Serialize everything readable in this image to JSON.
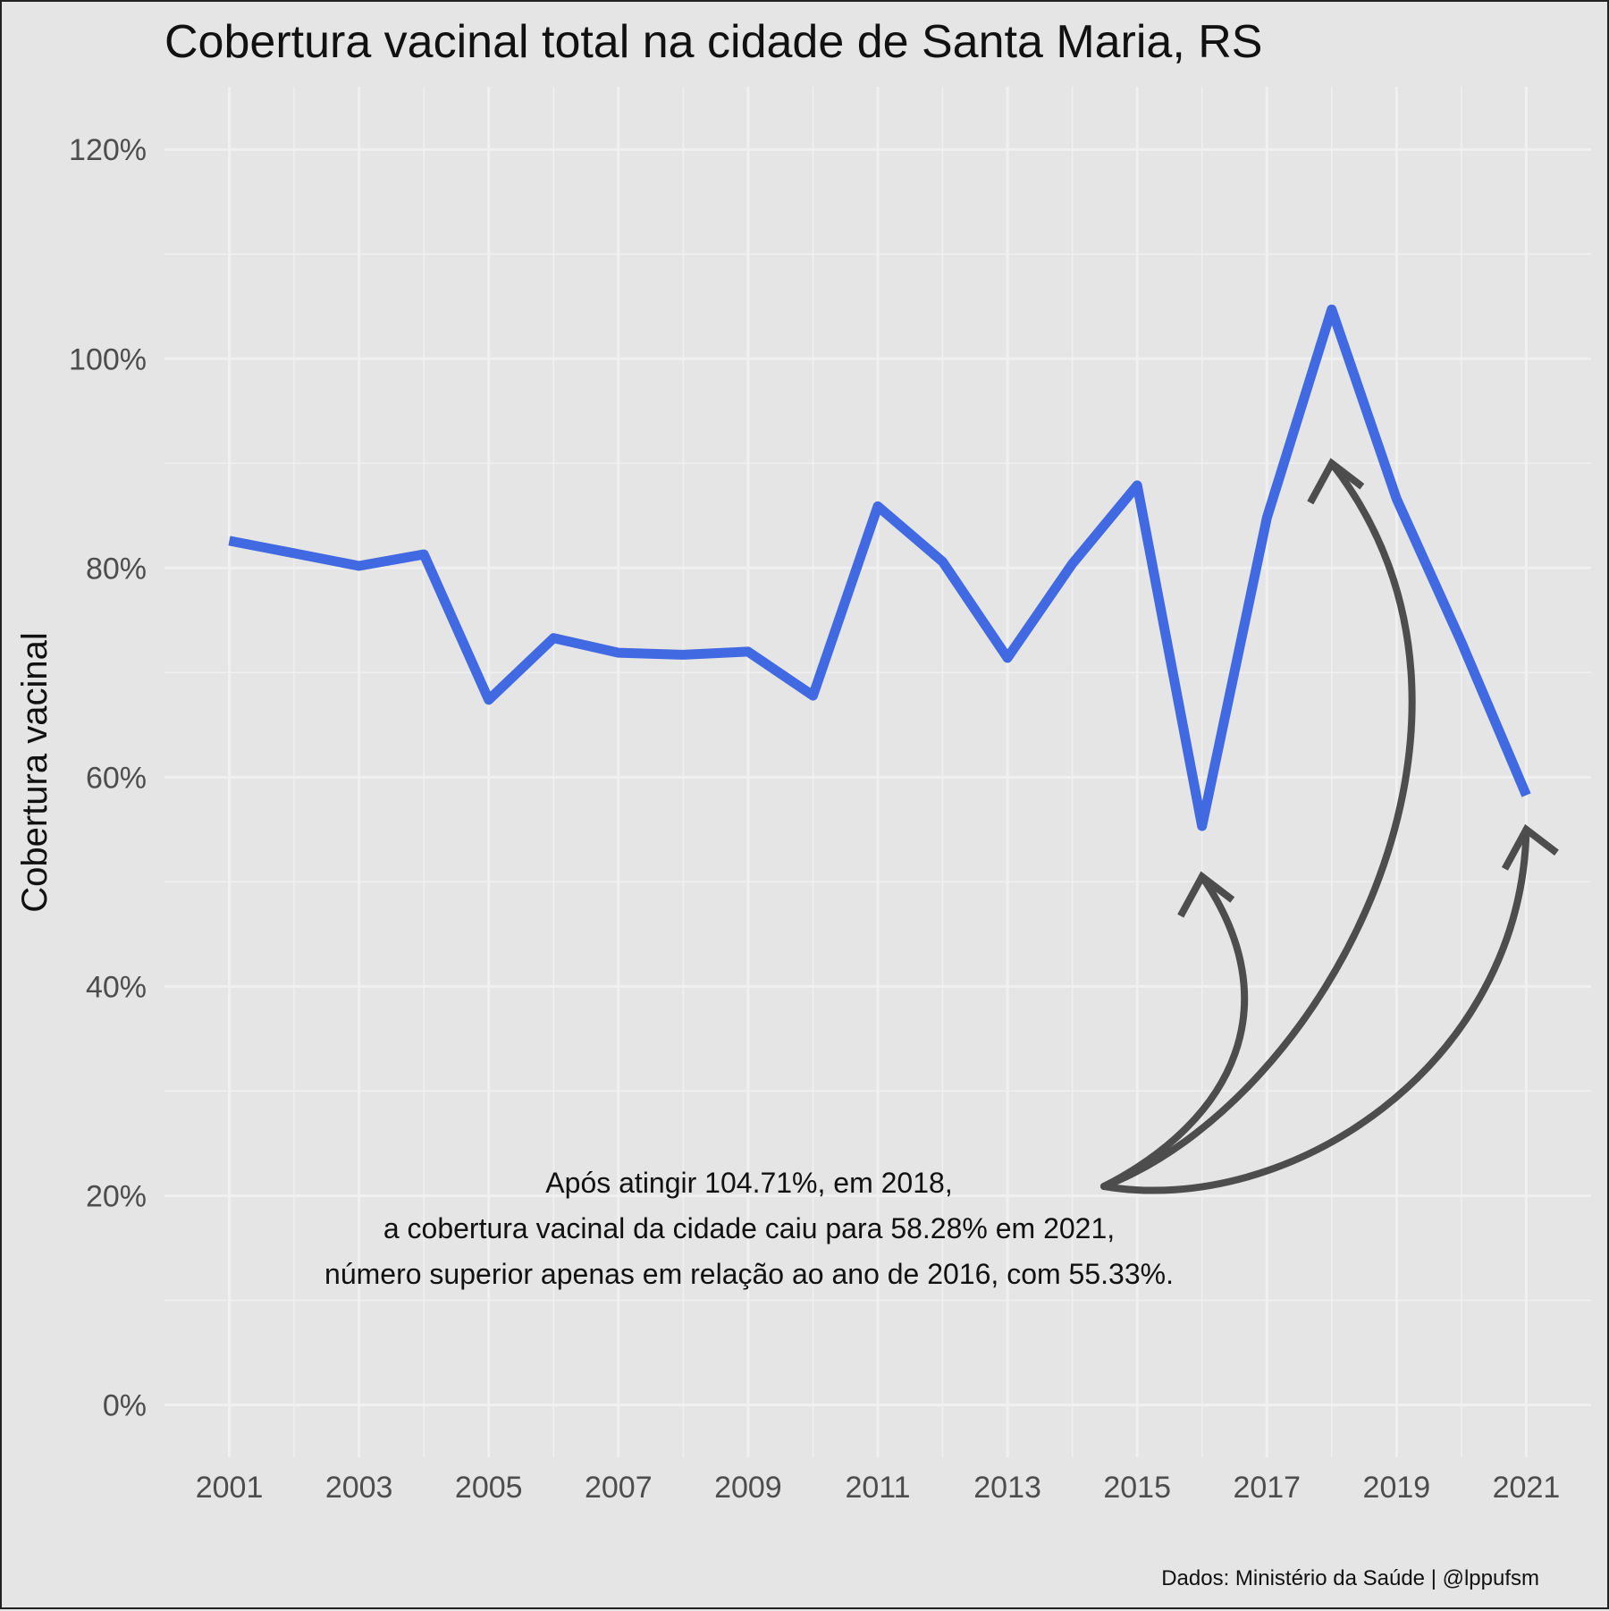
{
  "chart_data": {
    "type": "line",
    "title": "Cobertura vacinal total na cidade de Santa Maria, RS",
    "ylabel": "Cobertura vacinal",
    "xlabel": "",
    "x": [
      2001,
      2002,
      2003,
      2004,
      2005,
      2006,
      2007,
      2008,
      2009,
      2010,
      2011,
      2012,
      2013,
      2014,
      2015,
      2016,
      2017,
      2018,
      2019,
      2020,
      2021
    ],
    "series": [
      {
        "values": [
          82.6,
          81.4,
          80.2,
          81.3,
          67.4,
          73.3,
          71.9,
          71.7,
          72.0,
          67.8,
          85.9,
          80.6,
          71.4,
          80.4,
          87.9,
          55.33,
          84.8,
          104.71,
          86.6,
          72.9,
          58.28
        ]
      }
    ],
    "xlim": [
      2000,
      2022
    ],
    "ylim": [
      -5,
      126
    ],
    "x_ticks": [
      "2001",
      "2003",
      "2005",
      "2007",
      "2009",
      "2011",
      "2013",
      "2015",
      "2017",
      "2019",
      "2021"
    ],
    "y_ticks": [
      "0%",
      "20%",
      "40%",
      "60%",
      "80%",
      "100%",
      "120%"
    ],
    "grid": true,
    "annotation": [
      "Após atingir 104.71%, em 2018,",
      "a cobertura vacinal da cidade caiu para 58.28% em 2021,",
      "número superior apenas em relação ao ano de 2016, com 55.33%."
    ],
    "caption": "Dados: Ministério da Saúde | @lppufsm",
    "colors": {
      "line": "#4169e1",
      "arrow": "#4d4d4d",
      "panel": "#e5e5e5",
      "grid": "#f0f0f0"
    }
  }
}
